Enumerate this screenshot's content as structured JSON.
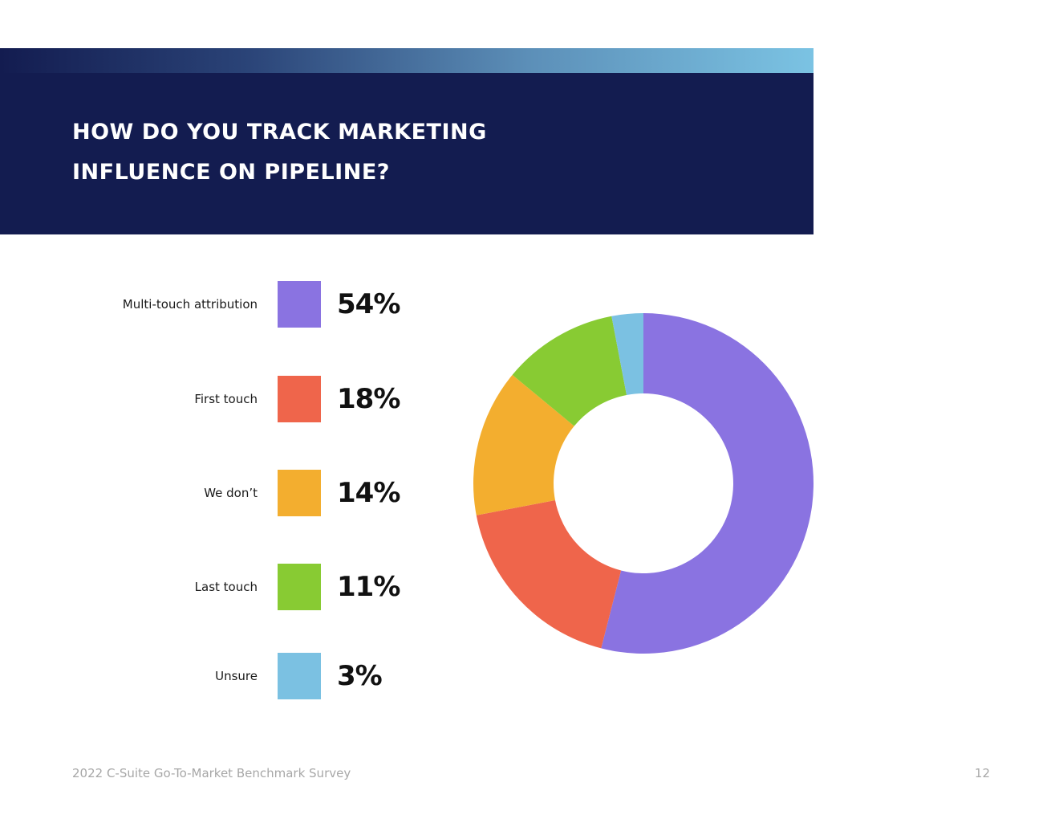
{
  "header": {
    "title_line1": "How do you track marketing",
    "title_line2": "influence on pipeline?"
  },
  "chart_data": {
    "type": "pie",
    "subtype": "donut",
    "title": "How do you track marketing influence on pipeline?",
    "categories": [
      "Multi-touch attribution",
      "First touch",
      "We don’t",
      "Last touch",
      "Unsure"
    ],
    "values": [
      54,
      18,
      14,
      11,
      3
    ],
    "value_labels": [
      "54%",
      "18%",
      "14%",
      "11%",
      "3%"
    ],
    "colors": [
      "#8a73e1",
      "#ef654b",
      "#f3ae2f",
      "#88cb33",
      "#7bc1e2"
    ],
    "unit": "%",
    "legend_position": "left"
  },
  "footer": {
    "text": "2022 C-Suite Go-To-Market Benchmark Survey",
    "page_number": "12"
  }
}
